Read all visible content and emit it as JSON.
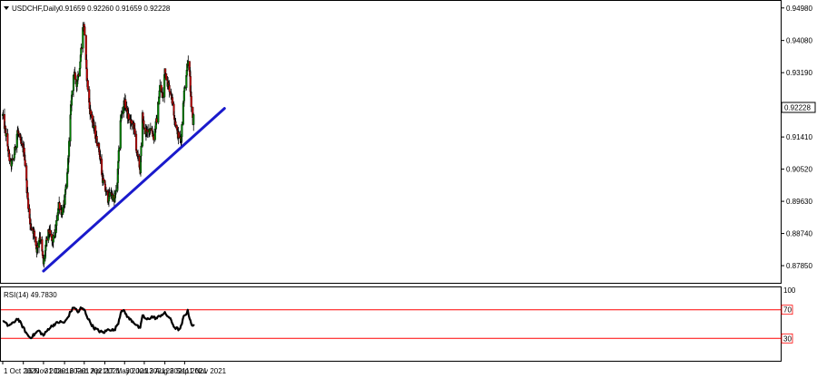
{
  "header": {
    "symbol_label": "USDCHF,Daily",
    "ohlc_text": "0.91659 0.92260 0.91659 0.92228",
    "collapse_icon": "triangle-down-icon"
  },
  "colors": {
    "bull": "#008000",
    "bear": "#c00000",
    "trendline": "#1a1acc",
    "rsi_line": "#000000",
    "rsi_levels": "#ff0000",
    "current_price_box": "#ffffff"
  },
  "chart_data": [
    {
      "type": "candlestick",
      "title": "USDCHF,Daily",
      "y_ticks": [
        "0.94980",
        "0.94080",
        "0.93190",
        "0.92228",
        "0.91410",
        "0.90520",
        "0.89630",
        "0.88740",
        "0.87850"
      ],
      "current_price": "0.92228",
      "ylim": [
        0.874,
        0.9515
      ],
      "x_ticks": [
        "1 Oct 2020",
        "16 Nov 2020",
        "31 Dec 2020",
        "16 Feb 2021",
        "1 Apr 2021",
        "17 May 2021",
        "30 Jun 2021",
        "13 Aug 2021",
        "28 Sep 2021",
        "11 Nov 2021"
      ],
      "close_path": [
        [
          "1 Oct 2020",
          0.92
        ],
        [
          "10 Oct 2020",
          0.9135
        ],
        [
          "18 Oct 2020",
          0.906
        ],
        [
          "26 Oct 2020",
          0.9085
        ],
        [
          "3 Nov 2020",
          0.916
        ],
        [
          "11 Nov 2020",
          0.912
        ],
        [
          "18 Nov 2020",
          0.91
        ],
        [
          "25 Nov 2020",
          0.898
        ],
        [
          "1 Dec 2020",
          0.89
        ],
        [
          "9 Dec 2020",
          0.888
        ],
        [
          "16 Dec 2020",
          0.883
        ],
        [
          "23 Dec 2020",
          0.887
        ],
        [
          "31 Dec 2020",
          0.879
        ],
        [
          "5 Jan 2021",
          0.884
        ],
        [
          "12 Jan 2021",
          0.888
        ],
        [
          "20 Jan 2021",
          0.885
        ],
        [
          "27 Jan 2021",
          0.888
        ],
        [
          "3 Feb 2021",
          0.896
        ],
        [
          "10 Feb 2021",
          0.893
        ],
        [
          "16 Feb 2021",
          0.896
        ],
        [
          "23 Feb 2021",
          0.905
        ],
        [
          "2 Mar 2021",
          0.922
        ],
        [
          "8 Mar 2021",
          0.932
        ],
        [
          "15 Mar 2021",
          0.929
        ],
        [
          "22 Mar 2021",
          0.934
        ],
        [
          "29 Mar 2021",
          0.944
        ],
        [
          "1 Apr 2021",
          0.945
        ],
        [
          "6 Apr 2021",
          0.932
        ],
        [
          "13 Apr 2021",
          0.922
        ],
        [
          "20 Apr 2021",
          0.918
        ],
        [
          "27 Apr 2021",
          0.914
        ],
        [
          "4 May 2021",
          0.911
        ],
        [
          "11 May 2021",
          0.903
        ],
        [
          "17 May 2021",
          0.9
        ],
        [
          "24 May 2021",
          0.897
        ],
        [
          "31 May 2021",
          0.899
        ],
        [
          "7 Jun 2021",
          0.896
        ],
        [
          "14 Jun 2021",
          0.902
        ],
        [
          "21 Jun 2021",
          0.919
        ],
        [
          "30 Jun 2021",
          0.924
        ],
        [
          "7 Jul 2021",
          0.92
        ],
        [
          "14 Jul 2021",
          0.918
        ],
        [
          "21 Jul 2021",
          0.917
        ],
        [
          "28 Jul 2021",
          0.909
        ],
        [
          "4 Aug 2021",
          0.905
        ],
        [
          "9 Aug 2021",
          0.92
        ],
        [
          "13 Aug 2021",
          0.916
        ],
        [
          "20 Aug 2021",
          0.915
        ],
        [
          "27 Aug 2021",
          0.917
        ],
        [
          "3 Sep 2021",
          0.914
        ],
        [
          "10 Sep 2021",
          0.919
        ],
        [
          "17 Sep 2021",
          0.928
        ],
        [
          "24 Sep 2021",
          0.925
        ],
        [
          "28 Sep 2021",
          0.933
        ],
        [
          "4 Oct 2021",
          0.929
        ],
        [
          "12 Oct 2021",
          0.926
        ],
        [
          "19 Oct 2021",
          0.92
        ],
        [
          "26 Oct 2021",
          0.915
        ],
        [
          "3 Nov 2021",
          0.913
        ],
        [
          "8 Nov 2021",
          0.924
        ],
        [
          "15 Nov 2021",
          0.932
        ],
        [
          "19 Nov 2021",
          0.936
        ],
        [
          "23 Nov 2021",
          0.93
        ],
        [
          "26 Nov 2021",
          0.9215
        ],
        [
          "30 Nov 2021",
          0.918
        ],
        [
          "2 Dec 2021",
          0.9223
        ]
      ],
      "trendline": [
        [
          "31 Dec 2020",
          0.877
        ],
        [
          "8 Feb 2022",
          0.922
        ]
      ]
    },
    {
      "type": "line",
      "title": "RSI(14) 49.7830",
      "y_ticks": [
        "100",
        "70",
        "30"
      ],
      "levels": [
        70,
        30
      ],
      "ylim": [
        0,
        100
      ],
      "series": [
        {
          "values": [
            [
              "1 Oct 2020",
              55
            ],
            [
              "12 Oct 2020",
              48
            ],
            [
              "22 Oct 2020",
              50
            ],
            [
              "3 Nov 2020",
              58
            ],
            [
              "14 Nov 2020",
              47
            ],
            [
              "24 Nov 2020",
              36
            ],
            [
              "1 Dec 2020",
              31
            ],
            [
              "10 Dec 2020",
              35
            ],
            [
              "20 Dec 2020",
              41
            ],
            [
              "31 Dec 2020",
              34
            ],
            [
              "12 Jan 2021",
              44
            ],
            [
              "25 Jan 2021",
              50
            ],
            [
              "5 Feb 2021",
              53
            ],
            [
              "16 Feb 2021",
              52
            ],
            [
              "24 Feb 2021",
              60
            ],
            [
              "2 Mar 2021",
              68
            ],
            [
              "10 Mar 2021",
              74
            ],
            [
              "18 Mar 2021",
              66
            ],
            [
              "24 Mar 2021",
              72
            ],
            [
              "1 Apr 2021",
              70
            ],
            [
              "10 Apr 2021",
              57
            ],
            [
              "22 Apr 2021",
              45
            ],
            [
              "5 May 2021",
              40
            ],
            [
              "14 May 2021",
              38
            ],
            [
              "26 May 2021",
              43
            ],
            [
              "7 Jun 2021",
              41
            ],
            [
              "16 Jun 2021",
              52
            ],
            [
              "23 Jun 2021",
              70
            ],
            [
              "30 Jun 2021",
              67
            ],
            [
              "9 Jul 2021",
              58
            ],
            [
              "20 Jul 2021",
              53
            ],
            [
              "4 Aug 2021",
              43
            ],
            [
              "9 Aug 2021",
              63
            ],
            [
              "17 Aug 2021",
              56
            ],
            [
              "30 Aug 2021",
              60
            ],
            [
              "10 Sep 2021",
              58
            ],
            [
              "20 Sep 2021",
              63
            ],
            [
              "28 Sep 2021",
              65
            ],
            [
              "8 Oct 2021",
              59
            ],
            [
              "20 Oct 2021",
              45
            ],
            [
              "1 Nov 2021",
              42
            ],
            [
              "9 Nov 2021",
              60
            ],
            [
              "18 Nov 2021",
              68
            ],
            [
              "24 Nov 2021",
              55
            ],
            [
              "29 Nov 2021",
              46
            ],
            [
              "2 Dec 2021",
              49.78
            ]
          ]
        }
      ]
    }
  ]
}
